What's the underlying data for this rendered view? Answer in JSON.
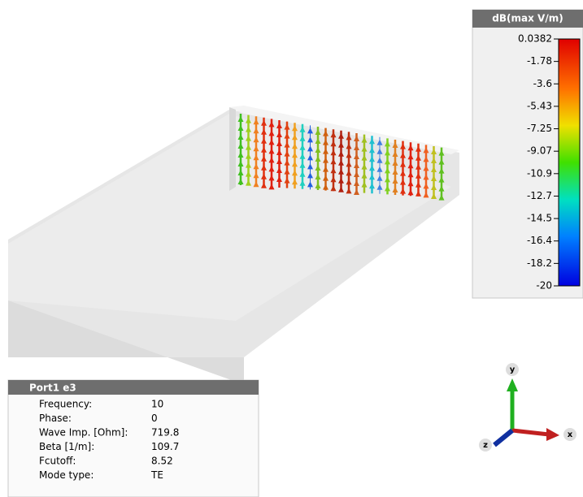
{
  "legend": {
    "title": "dB(max V/m)",
    "ticks": [
      "0.0382",
      "-1.78",
      "-3.6",
      "-5.43",
      "-7.25",
      "-9.07",
      "-10.9",
      "-12.7",
      "-14.5",
      "-16.4",
      "-18.2",
      "-20"
    ]
  },
  "info_panel": {
    "title": "Port1 e3",
    "rows": [
      [
        "Frequency:",
        "10"
      ],
      [
        "Phase:",
        "0"
      ],
      [
        "Wave Imp. [Ohm]:",
        "719.8"
      ],
      [
        "Beta [1/m]:",
        "109.7"
      ],
      [
        "Fcutoff:",
        "8.52"
      ],
      [
        "Mode type:",
        "TE"
      ]
    ]
  },
  "axes": {
    "y": "y",
    "x": "x",
    "z": "z"
  }
}
